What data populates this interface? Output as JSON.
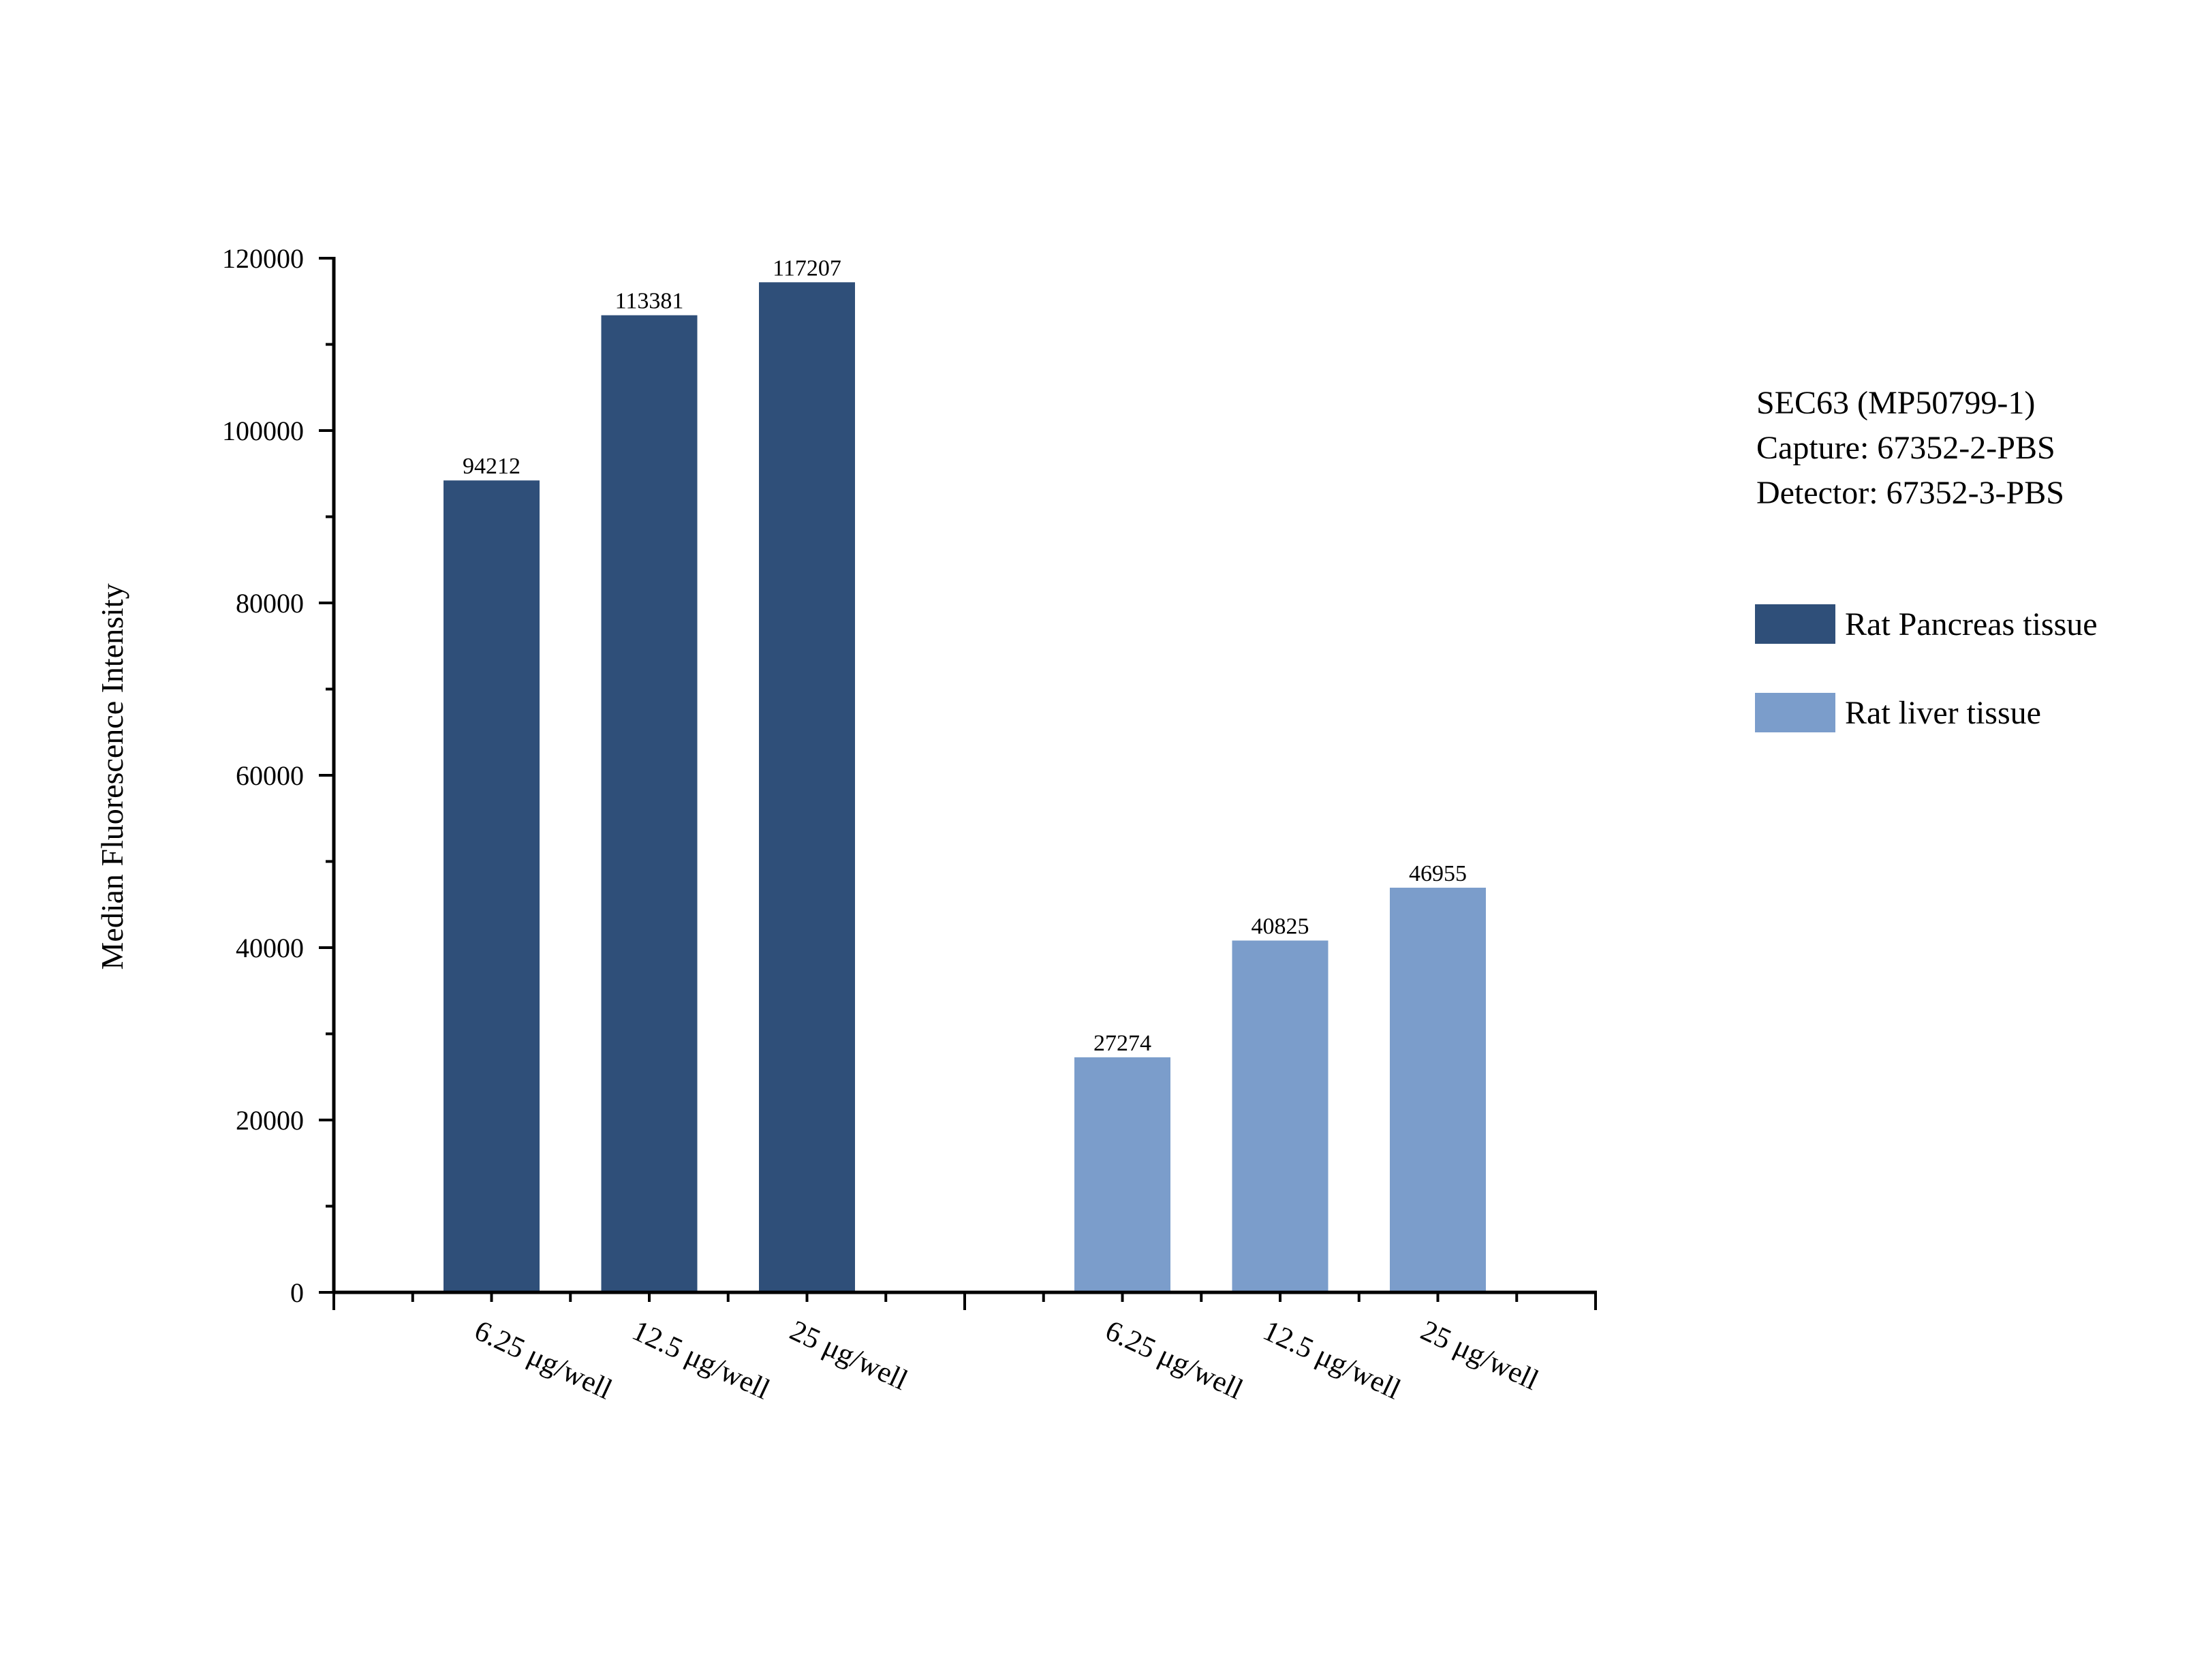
{
  "chart_data": {
    "type": "bar",
    "title": "",
    "xlabel": "",
    "ylabel": "Median Fluorescence Intensity",
    "ylim": [
      0,
      120000
    ],
    "yticks": [
      0,
      20000,
      40000,
      60000,
      80000,
      100000,
      120000
    ],
    "y_minor_step": 10000,
    "grid": false,
    "legend_position": "right",
    "annotation": {
      "lines": [
        "SEC63 (MP50799-1)",
        "Capture: 67352-2-PBS",
        "Detector: 67352-3-PBS"
      ]
    },
    "groups": [
      {
        "series_name": "Rat Pancreas tissue",
        "color": "#2f4f79",
        "categories": [
          "6.25 μg/well",
          "12.5 μg/well",
          "25 μg/well"
        ],
        "values": [
          94212,
          113381,
          117207
        ],
        "value_labels": [
          "94212",
          "113381",
          "117207"
        ]
      },
      {
        "series_name": "Rat liver tissue",
        "color": "#7b9dcb",
        "categories": [
          "6.25 μg/well",
          "12.5 μg/well",
          "25 μg/well"
        ],
        "values": [
          27274,
          40825,
          46955
        ],
        "value_labels": [
          "27274",
          "40825",
          "46955"
        ]
      }
    ],
    "legend": [
      {
        "label": "Rat Pancreas tissue",
        "color": "#2f4f79"
      },
      {
        "label": "Rat liver tissue",
        "color": "#7b9dcb"
      }
    ]
  }
}
